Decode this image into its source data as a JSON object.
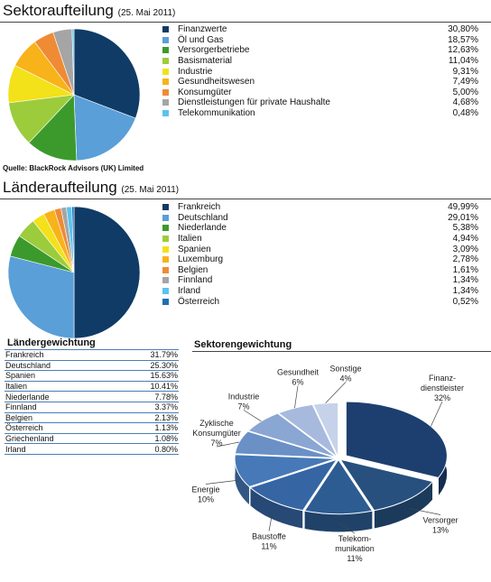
{
  "sections": {
    "sector": {
      "title": "Sektoraufteilung",
      "date": "(25. Mai 2011)"
    },
    "country": {
      "title": "Länderaufteilung",
      "date": "(25. Mai 2011)"
    }
  },
  "source": "Quelle: BlackRock Advisors (UK) Limited",
  "chart_data": [
    {
      "type": "pie",
      "title": "Sektoraufteilung",
      "categories": [
        "Finanzwerte",
        "Öl und Gas",
        "Versorgerbetriebe",
        "Basismaterial",
        "Industrie",
        "Gesundheitswesen",
        "Konsumgüter",
        "Dienstleistungen für private Haushalte",
        "Telekommunikation"
      ],
      "values": [
        30.8,
        18.57,
        12.63,
        11.04,
        9.31,
        7.49,
        5.0,
        4.68,
        0.48
      ],
      "labels": [
        "30,80%",
        "18,57%",
        "12,63%",
        "11,04%",
        "9,31%",
        "7,49%",
        "5,00%",
        "4,68%",
        "0,48%"
      ],
      "colors": [
        "#0f3b66",
        "#5a9fd8",
        "#3c9a2c",
        "#9ccc3c",
        "#f3e11a",
        "#f8b21a",
        "#ef8b35",
        "#a5a5a5",
        "#5bc3ef"
      ],
      "legend": "right"
    },
    {
      "type": "pie",
      "title": "Länderaufteilung",
      "categories": [
        "Frankreich",
        "Deutschland",
        "Niederlande",
        "Italien",
        "Spanien",
        "Luxemburg",
        "Belgien",
        "Finnland",
        "Irland",
        "Österreich"
      ],
      "values": [
        49.99,
        29.01,
        5.38,
        4.94,
        3.09,
        2.78,
        1.61,
        1.34,
        1.34,
        0.52
      ],
      "labels": [
        "49,99%",
        "29,01%",
        "5,38%",
        "4,94%",
        "3,09%",
        "2,78%",
        "1,61%",
        "1,34%",
        "1,34%",
        "0,52%"
      ],
      "colors": [
        "#0f3b66",
        "#5a9fd8",
        "#3c9a2c",
        "#9ccc3c",
        "#f3e11a",
        "#f8b21a",
        "#ef8b35",
        "#a5a5a5",
        "#5bc3ef",
        "#1f6eb3"
      ],
      "legend": "right"
    },
    {
      "type": "table",
      "title": "Ländergewichtung",
      "rows": [
        {
          "label": "Frankreich",
          "value": "31.79%"
        },
        {
          "label": "Deutschland",
          "value": "25.30%"
        },
        {
          "label": "Spanien",
          "value": "15.63%"
        },
        {
          "label": "Italien",
          "value": "10.41%"
        },
        {
          "label": "Niederlande",
          "value": "7.78%"
        },
        {
          "label": "Finnland",
          "value": "3.37%"
        },
        {
          "label": "Belgien",
          "value": "2.13%"
        },
        {
          "label": "Österreich",
          "value": "1.13%"
        },
        {
          "label": "Griechenland",
          "value": "1.08%"
        },
        {
          "label": "Irland",
          "value": "0.80%"
        }
      ]
    },
    {
      "type": "pie",
      "title": "Sektorengewichtung",
      "style": "3d-exploded",
      "categories": [
        "Finanz-dienstleister",
        "Versorger",
        "Telekom-munikation",
        "Baustoffe",
        "Energie",
        "Zyklische Konsumgüter",
        "Industrie",
        "Gesundheit",
        "Sonstige"
      ],
      "values": [
        32,
        13,
        11,
        11,
        10,
        7,
        7,
        6,
        4
      ],
      "label_lines": [
        [
          "Finanz-",
          "dienstleister",
          "32%"
        ],
        [
          "Versorger",
          "13%"
        ],
        [
          "Telekom-",
          "munikation",
          "11%"
        ],
        [
          "Baustoffe",
          "11%"
        ],
        [
          "Energie",
          "10%"
        ],
        [
          "Zyklische",
          "Konsumgüter",
          "7%"
        ],
        [
          "Industrie",
          "7%"
        ],
        [
          "Gesundheit",
          "6%"
        ],
        [
          "Sonstige",
          "4%"
        ]
      ],
      "colors": [
        "#1d3f6f",
        "#27507f",
        "#2d5c92",
        "#3566a3",
        "#4779b8",
        "#6a90c6",
        "#8aa6d2",
        "#a7bade",
        "#c6d2e9"
      ]
    }
  ]
}
